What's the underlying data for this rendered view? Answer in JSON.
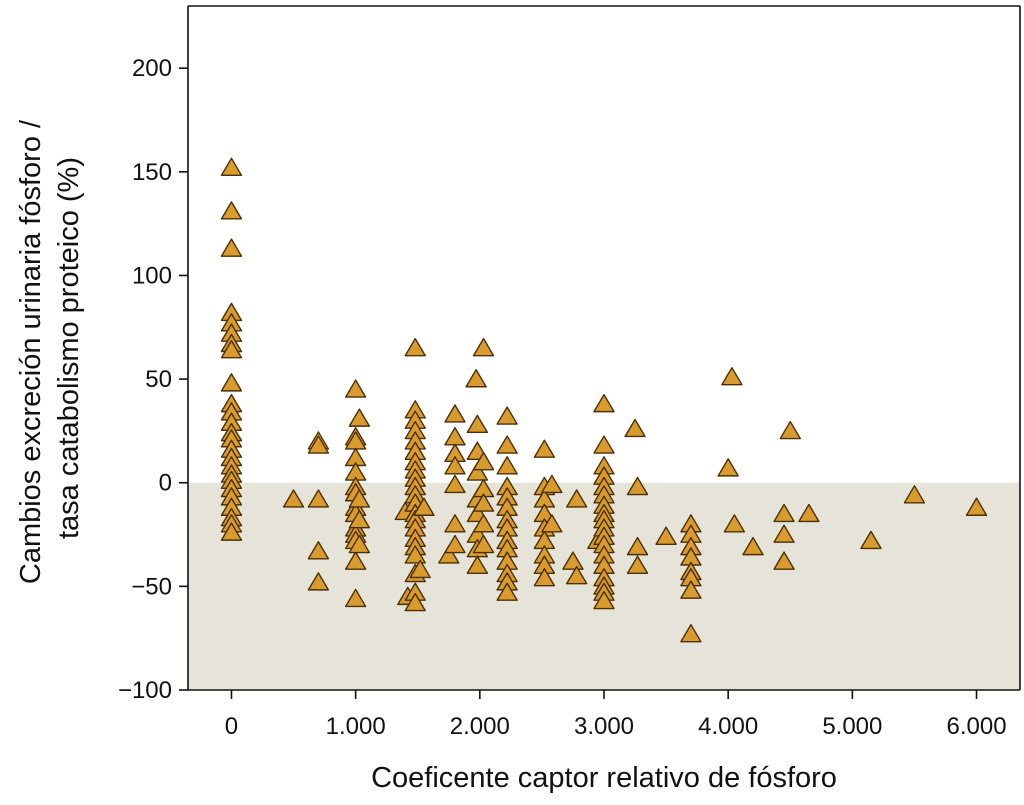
{
  "chart_data": {
    "type": "scatter",
    "xlabel": "Coeficente captor relativo de fósforo",
    "ylabel_lines": [
      "Cambios excreción urinaria fósforo /",
      "tasa catabolismo proteico (%)"
    ],
    "xlim": [
      -0.35,
      6.35
    ],
    "ylim": [
      -100,
      230
    ],
    "x_ticks": [
      {
        "value": 0,
        "label": "0"
      },
      {
        "value": 1,
        "label": "1.000"
      },
      {
        "value": 2,
        "label": "2.000"
      },
      {
        "value": 3,
        "label": "3.000"
      },
      {
        "value": 4,
        "label": "4.000"
      },
      {
        "value": 5,
        "label": "5.000"
      },
      {
        "value": 6,
        "label": "6.000"
      }
    ],
    "y_ticks": [
      {
        "value": 200,
        "label": "200"
      },
      {
        "value": 150,
        "label": "150"
      },
      {
        "value": 100,
        "label": "100"
      },
      {
        "value": 50,
        "label": "50"
      },
      {
        "value": 0,
        "label": "0"
      },
      {
        "value": -50,
        "label": "−50"
      },
      {
        "value": -100,
        "label": "−100"
      }
    ],
    "grid": false,
    "shaded_region": {
      "y_from": -100,
      "y_to": 0,
      "color": "#e6e4d9"
    },
    "marker": {
      "shape": "triangle",
      "fill": "#d99a2e",
      "edge": "#4a3008"
    },
    "points": [
      [
        0,
        152
      ],
      [
        0,
        131
      ],
      [
        0,
        113
      ],
      [
        0,
        82
      ],
      [
        0,
        77
      ],
      [
        0,
        72
      ],
      [
        0,
        67
      ],
      [
        0,
        64
      ],
      [
        0,
        48
      ],
      [
        0,
        38
      ],
      [
        0,
        34
      ],
      [
        0,
        29
      ],
      [
        0,
        24
      ],
      [
        0,
        21
      ],
      [
        0,
        16
      ],
      [
        0,
        12
      ],
      [
        0,
        8
      ],
      [
        0,
        4
      ],
      [
        0,
        1
      ],
      [
        0,
        -3
      ],
      [
        0,
        -7
      ],
      [
        0,
        -12
      ],
      [
        0,
        -17
      ],
      [
        0,
        -20
      ],
      [
        0,
        -24
      ],
      [
        0.5,
        -8
      ],
      [
        0.7,
        20
      ],
      [
        0.7,
        18
      ],
      [
        0.7,
        -8
      ],
      [
        0.7,
        -33
      ],
      [
        0.7,
        -48
      ],
      [
        1,
        45
      ],
      [
        1,
        22
      ],
      [
        1,
        20
      ],
      [
        1,
        12
      ],
      [
        1,
        5
      ],
      [
        1,
        -2
      ],
      [
        1,
        -5
      ],
      [
        1,
        -12
      ],
      [
        1,
        -15
      ],
      [
        1,
        -22
      ],
      [
        1,
        -25
      ],
      [
        1,
        -28
      ],
      [
        1,
        -38
      ],
      [
        1,
        -56
      ],
      [
        1.03,
        31
      ],
      [
        1.03,
        -8
      ],
      [
        1.03,
        -18
      ],
      [
        1.03,
        -30
      ],
      [
        1.4,
        -14
      ],
      [
        1.42,
        -55
      ],
      [
        1.48,
        65
      ],
      [
        1.48,
        35
      ],
      [
        1.48,
        30
      ],
      [
        1.48,
        25
      ],
      [
        1.48,
        20
      ],
      [
        1.48,
        15
      ],
      [
        1.48,
        10
      ],
      [
        1.48,
        6
      ],
      [
        1.48,
        2
      ],
      [
        1.48,
        -2
      ],
      [
        1.48,
        -6
      ],
      [
        1.48,
        -10
      ],
      [
        1.48,
        -15
      ],
      [
        1.48,
        -18
      ],
      [
        1.48,
        -22
      ],
      [
        1.48,
        -27
      ],
      [
        1.48,
        -31
      ],
      [
        1.48,
        -35
      ],
      [
        1.48,
        -44
      ],
      [
        1.48,
        -53
      ],
      [
        1.48,
        -58
      ],
      [
        1.52,
        -42
      ],
      [
        1.55,
        -12
      ],
      [
        1.75,
        -35
      ],
      [
        1.8,
        33
      ],
      [
        1.8,
        22
      ],
      [
        1.8,
        14
      ],
      [
        1.8,
        8
      ],
      [
        1.8,
        -1
      ],
      [
        1.8,
        -20
      ],
      [
        1.8,
        -30
      ],
      [
        1.97,
        50
      ],
      [
        1.98,
        28
      ],
      [
        1.98,
        15
      ],
      [
        1.98,
        5
      ],
      [
        1.98,
        -8
      ],
      [
        1.98,
        -15
      ],
      [
        1.98,
        -25
      ],
      [
        1.98,
        -32
      ],
      [
        1.98,
        -40
      ],
      [
        2.03,
        65
      ],
      [
        2.03,
        10
      ],
      [
        2.03,
        -3
      ],
      [
        2.03,
        -10
      ],
      [
        2.03,
        -20
      ],
      [
        2.03,
        -30
      ],
      [
        2.22,
        32
      ],
      [
        2.22,
        18
      ],
      [
        2.22,
        8
      ],
      [
        2.22,
        -2
      ],
      [
        2.22,
        -7
      ],
      [
        2.22,
        -12
      ],
      [
        2.22,
        -18
      ],
      [
        2.22,
        -22
      ],
      [
        2.22,
        -28
      ],
      [
        2.22,
        -32
      ],
      [
        2.22,
        -38
      ],
      [
        2.22,
        -44
      ],
      [
        2.22,
        -48
      ],
      [
        2.22,
        -53
      ],
      [
        2.52,
        16
      ],
      [
        2.52,
        -2
      ],
      [
        2.52,
        -8
      ],
      [
        2.52,
        -15
      ],
      [
        2.52,
        -22
      ],
      [
        2.52,
        -28
      ],
      [
        2.52,
        -35
      ],
      [
        2.52,
        -40
      ],
      [
        2.52,
        -46
      ],
      [
        2.58,
        -1
      ],
      [
        2.58,
        -20
      ],
      [
        2.75,
        -38
      ],
      [
        2.78,
        -8
      ],
      [
        2.78,
        -45
      ],
      [
        2.95,
        -28
      ],
      [
        3,
        38
      ],
      [
        3,
        18
      ],
      [
        3,
        8
      ],
      [
        3,
        3
      ],
      [
        3,
        -2
      ],
      [
        3,
        -6
      ],
      [
        3,
        -11
      ],
      [
        3,
        -15
      ],
      [
        3,
        -18
      ],
      [
        3,
        -22
      ],
      [
        3,
        -26
      ],
      [
        3,
        -30
      ],
      [
        3,
        -35
      ],
      [
        3,
        -40
      ],
      [
        3,
        -46
      ],
      [
        3,
        -50
      ],
      [
        3,
        -53
      ],
      [
        3,
        -57
      ],
      [
        3.25,
        26
      ],
      [
        3.27,
        -2
      ],
      [
        3.27,
        -31
      ],
      [
        3.27,
        -40
      ],
      [
        3.5,
        -26
      ],
      [
        3.7,
        -20
      ],
      [
        3.7,
        -25
      ],
      [
        3.7,
        -31
      ],
      [
        3.7,
        -36
      ],
      [
        3.7,
        -43
      ],
      [
        3.7,
        -46
      ],
      [
        3.7,
        -52
      ],
      [
        3.7,
        -73
      ],
      [
        4,
        7
      ],
      [
        4.03,
        51
      ],
      [
        4.05,
        -20
      ],
      [
        4.2,
        -31
      ],
      [
        4.45,
        -15
      ],
      [
        4.45,
        -25
      ],
      [
        4.45,
        -38
      ],
      [
        4.5,
        25
      ],
      [
        4.65,
        -15
      ],
      [
        5.15,
        -28
      ],
      [
        5.5,
        -6
      ],
      [
        6,
        -12
      ]
    ]
  }
}
